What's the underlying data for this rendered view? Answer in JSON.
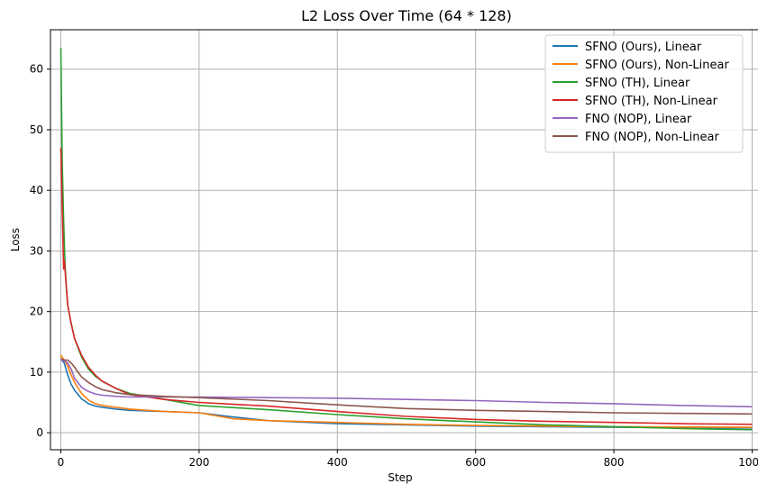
{
  "chart_data": {
    "type": "line",
    "title": "L2 Loss Over Time (64 * 128)",
    "xlabel": "Step",
    "ylabel": "Loss",
    "xlim": [
      -15,
      1015
    ],
    "ylim": [
      -2.8,
      66.5
    ],
    "xticks": [
      0,
      200,
      400,
      600,
      800,
      1000
    ],
    "yticks": [
      0,
      10,
      20,
      30,
      40,
      50,
      60
    ],
    "grid": true,
    "legend_position": "top-right",
    "series": [
      {
        "name": "SFNO (Ours), Linear",
        "color": "#1f77b4",
        "x": [
          0,
          5,
          10,
          15,
          20,
          30,
          40,
          50,
          60,
          80,
          100,
          150,
          200,
          250,
          300,
          400,
          500,
          600,
          700,
          800,
          900,
          1000
        ],
        "y": [
          12.2,
          11.5,
          9.5,
          8.0,
          7.0,
          5.6,
          4.8,
          4.4,
          4.2,
          3.9,
          3.7,
          3.5,
          3.3,
          2.6,
          2.0,
          1.5,
          1.3,
          1.1,
          1.0,
          0.9,
          0.85,
          0.8
        ]
      },
      {
        "name": "SFNO (Ours), Non-Linear",
        "color": "#ff7f0e",
        "x": [
          0,
          5,
          10,
          15,
          20,
          30,
          40,
          50,
          60,
          80,
          100,
          150,
          200,
          250,
          300,
          400,
          500,
          600,
          700,
          800,
          900,
          1000
        ],
        "y": [
          12.8,
          12.0,
          11.0,
          9.5,
          8.3,
          6.5,
          5.4,
          4.8,
          4.5,
          4.2,
          3.9,
          3.5,
          3.3,
          2.3,
          2.0,
          1.7,
          1.4,
          1.2,
          1.1,
          1.0,
          0.95,
          0.9
        ]
      },
      {
        "name": "SFNO (TH), Linear",
        "color": "#2ca02c",
        "x": [
          0,
          2,
          4,
          6,
          8,
          10,
          15,
          20,
          30,
          40,
          50,
          60,
          80,
          100,
          150,
          200,
          300,
          400,
          500,
          600,
          700,
          800,
          900,
          1000
        ],
        "y": [
          63.5,
          45.0,
          35.0,
          28.0,
          24.0,
          21.0,
          18.0,
          15.5,
          12.5,
          10.5,
          9.3,
          8.5,
          7.3,
          6.5,
          5.5,
          4.5,
          3.8,
          3.0,
          2.3,
          1.8,
          1.3,
          1.0,
          0.7,
          0.5
        ]
      },
      {
        "name": "SFNO (TH), Non-Linear",
        "color": "#d62728",
        "x": [
          0,
          2,
          4,
          5,
          6,
          8,
          10,
          15,
          20,
          30,
          40,
          50,
          60,
          80,
          100,
          150,
          200,
          300,
          400,
          500,
          600,
          700,
          800,
          900,
          1000
        ],
        "y": [
          47.0,
          37.0,
          27.0,
          28.5,
          27.0,
          24.0,
          21.0,
          18.0,
          15.5,
          12.8,
          10.8,
          9.5,
          8.5,
          7.3,
          6.3,
          5.5,
          5.0,
          4.4,
          3.5,
          2.7,
          2.2,
          1.9,
          1.7,
          1.5,
          1.4
        ]
      },
      {
        "name": "FNO (NOP), Linear",
        "color": "#9467bd",
        "x": [
          0,
          5,
          10,
          15,
          20,
          30,
          40,
          50,
          60,
          80,
          100,
          150,
          200,
          300,
          400,
          500,
          600,
          700,
          800,
          900,
          1000
        ],
        "y": [
          12.0,
          11.9,
          11.5,
          10.5,
          9.0,
          7.5,
          6.8,
          6.4,
          6.2,
          6.0,
          5.9,
          5.9,
          5.9,
          5.8,
          5.7,
          5.5,
          5.3,
          5.0,
          4.8,
          4.5,
          4.3
        ]
      },
      {
        "name": "FNO (NOP), Non-Linear",
        "color": "#8c564b",
        "x": [
          0,
          5,
          10,
          15,
          20,
          30,
          40,
          50,
          60,
          80,
          100,
          150,
          200,
          300,
          400,
          500,
          600,
          700,
          800,
          900,
          1000
        ],
        "y": [
          12.2,
          12.0,
          12.0,
          11.5,
          10.8,
          9.2,
          8.3,
          7.6,
          7.1,
          6.6,
          6.3,
          6.0,
          5.8,
          5.3,
          4.6,
          4.0,
          3.7,
          3.5,
          3.3,
          3.2,
          3.1
        ]
      }
    ]
  }
}
